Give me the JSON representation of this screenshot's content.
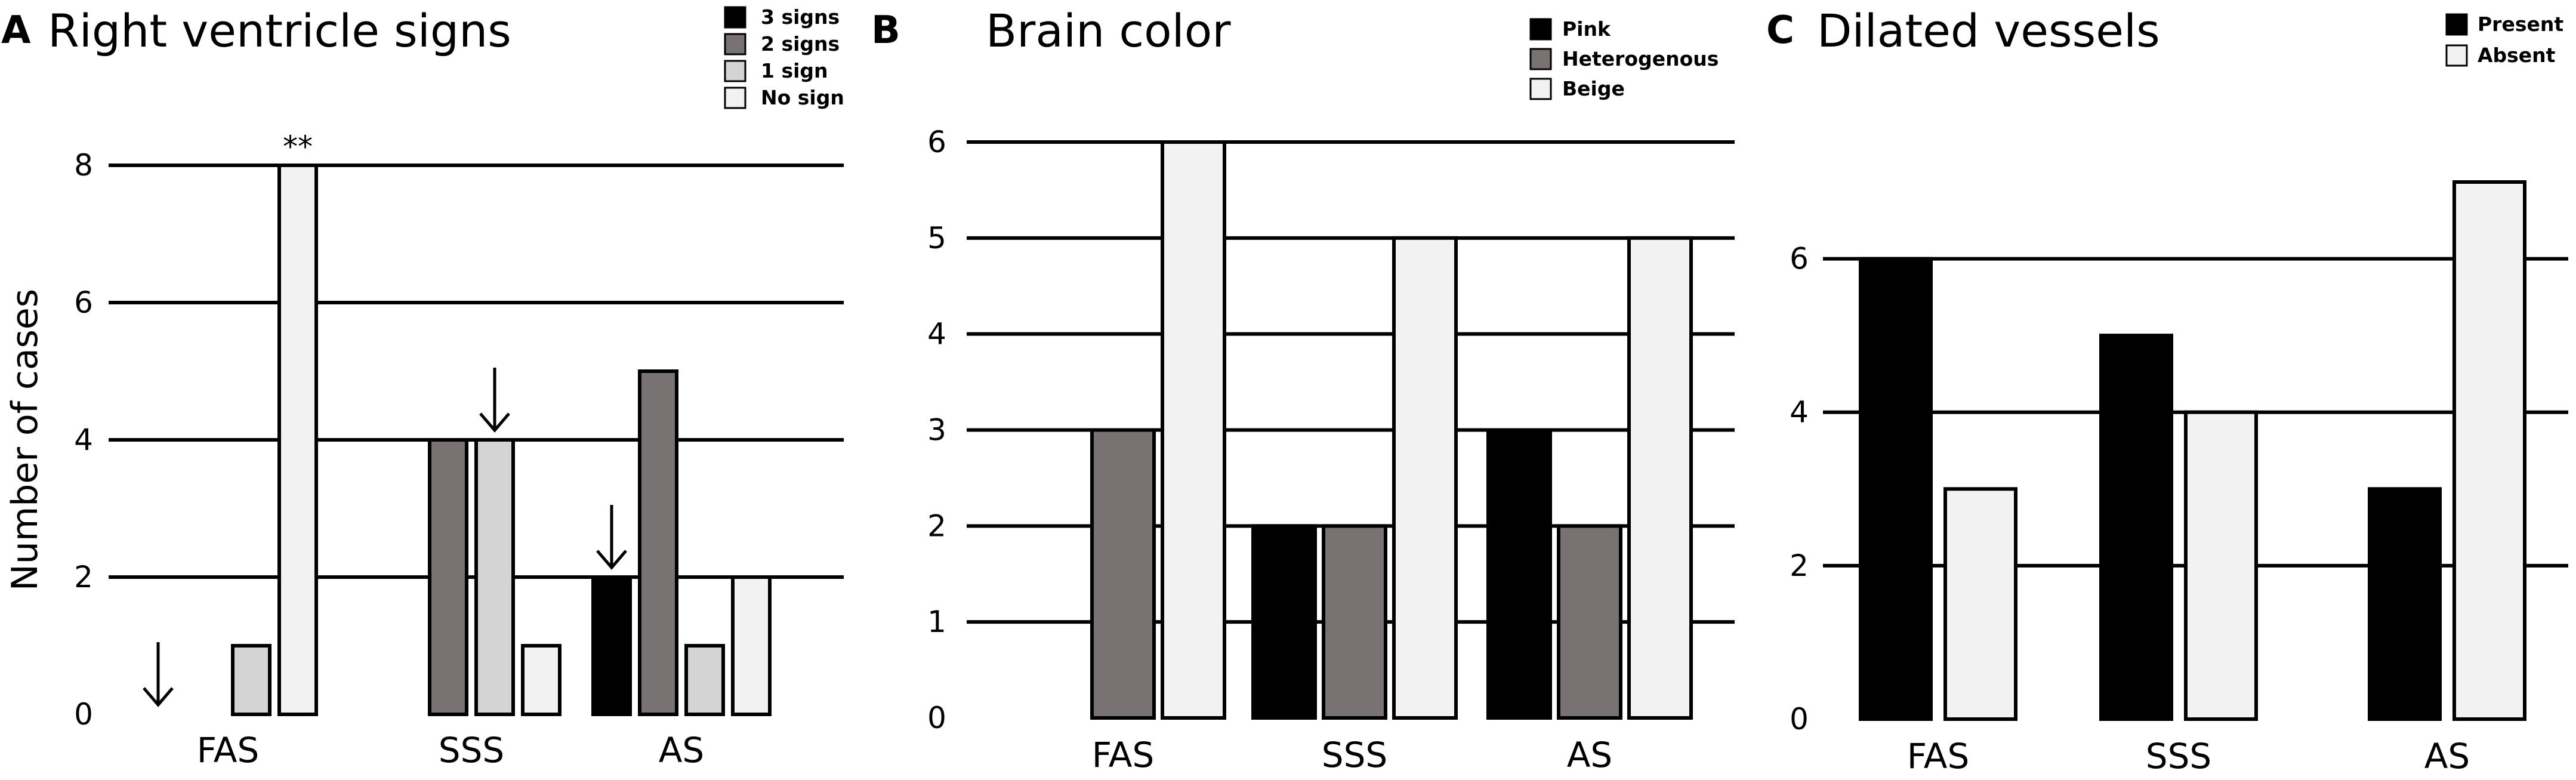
{
  "colors": {
    "black": "#000000",
    "dark_gray": "#787272",
    "light_gray": "#d4d4d4",
    "off_white": "#f2f2f2"
  },
  "chart_data": [
    {
      "panel": "A",
      "type": "bar",
      "title": "Right ventricle signs",
      "ylabel": "Number of cases",
      "xlabel": "",
      "categories": [
        "FAS",
        "SSS",
        "AS"
      ],
      "ylim": [
        0,
        8
      ],
      "yticks": [
        0,
        2,
        4,
        6,
        8
      ],
      "grid": true,
      "legend_position": "top-right",
      "series": [
        {
          "name": "3 signs",
          "color": "#000000",
          "values": [
            0,
            0,
            2
          ]
        },
        {
          "name": "2 signs",
          "color": "#787272",
          "values": [
            0,
            4,
            5
          ]
        },
        {
          "name": "1 sign",
          "color": "#d4d4d4",
          "values": [
            1,
            4,
            1
          ]
        },
        {
          "name": "No sign",
          "color": "#f2f2f2",
          "values": [
            8,
            1,
            2
          ]
        }
      ],
      "annotations": [
        {
          "type": "text",
          "text": "**",
          "category": "FAS",
          "series": "No sign"
        },
        {
          "type": "arrow",
          "category": "FAS",
          "series": "3 signs"
        },
        {
          "type": "arrow",
          "category": "SSS",
          "series": "1 sign"
        },
        {
          "type": "arrow",
          "category": "AS",
          "series": "3 signs"
        }
      ]
    },
    {
      "panel": "B",
      "type": "bar",
      "title": "Brain color",
      "ylabel": "",
      "xlabel": "",
      "categories": [
        "FAS",
        "SSS",
        "AS"
      ],
      "ylim": [
        0,
        6
      ],
      "yticks": [
        0,
        1,
        2,
        3,
        4,
        5,
        6
      ],
      "grid": true,
      "legend_position": "top-right",
      "series": [
        {
          "name": "Pink",
          "color": "#000000",
          "values": [
            0,
            2,
            3
          ]
        },
        {
          "name": "Heterogenous",
          "color": "#787272",
          "values": [
            3,
            2,
            2
          ]
        },
        {
          "name": "Beige",
          "color": "#f2f2f2",
          "values": [
            6,
            5,
            5
          ]
        }
      ]
    },
    {
      "panel": "C",
      "type": "bar",
      "title": "Dilated vessels",
      "ylabel": "",
      "xlabel": "",
      "categories": [
        "FAS",
        "SSS",
        "AS"
      ],
      "ylim": [
        0,
        7
      ],
      "yticks": [
        0,
        2,
        4,
        6
      ],
      "grid": true,
      "legend_position": "top-right",
      "series": [
        {
          "name": "Present",
          "color": "#000000",
          "values": [
            6,
            5,
            3
          ]
        },
        {
          "name": "Absent",
          "color": "#f2f2f2",
          "values": [
            3,
            4,
            7
          ]
        }
      ]
    }
  ]
}
